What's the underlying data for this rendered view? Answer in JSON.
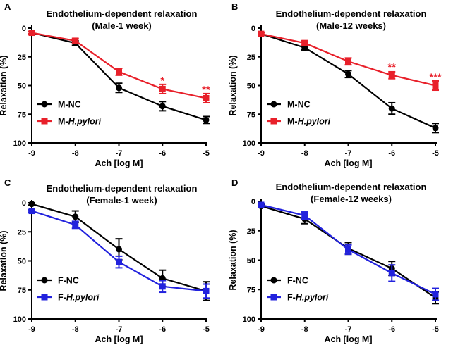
{
  "chart_data": [
    {
      "type": "line",
      "panel": "A",
      "title": [
        "Endothelium-dependent relaxation",
        "(Male-1 week)"
      ],
      "xlabel": "Ach [log M]",
      "ylabel": "Relaxation (%)",
      "x": [
        -9,
        -8,
        -7,
        -6,
        -5
      ],
      "x_tick_labels": [
        "-9",
        "-8",
        "-7",
        "-6",
        "-5"
      ],
      "ylim": [
        100,
        0
      ],
      "y_ticks": [
        0,
        25,
        50,
        75,
        100
      ],
      "y_tick_labels": [
        "0",
        "25",
        "50",
        "75",
        "100"
      ],
      "legend_position": "bottom-left",
      "series": [
        {
          "name": "M-NC",
          "name_parts": [
            "M-NC"
          ],
          "color": "#000000",
          "marker": "circle",
          "values": [
            4,
            13,
            52,
            68,
            80
          ],
          "errors": [
            1,
            2,
            4,
            4,
            3
          ]
        },
        {
          "name": "M-H.pylori",
          "name_parts": [
            "M-",
            "H.pylori"
          ],
          "color": "#e8202a",
          "marker": "square",
          "values": [
            4,
            11,
            38,
            53,
            61
          ],
          "errors": [
            1,
            2,
            3,
            4,
            4
          ]
        }
      ],
      "annotations": [
        {
          "x": -6,
          "y": 45,
          "text": "*"
        },
        {
          "x": -5,
          "y": 53,
          "text": "**"
        }
      ]
    },
    {
      "type": "line",
      "panel": "B",
      "title": [
        "Endothelium-dependent relaxation",
        "(Male-12 weeks)"
      ],
      "xlabel": "Ach [log M]",
      "ylabel": "Relaxation (%)",
      "x": [
        -9,
        -8,
        -7,
        -6,
        -5
      ],
      "x_tick_labels": [
        "-9",
        "-8",
        "-7",
        "-6",
        "-5"
      ],
      "ylim": [
        100,
        0
      ],
      "y_ticks": [
        0,
        25,
        50,
        75,
        100
      ],
      "y_tick_labels": [
        "0",
        "25",
        "50",
        "75",
        "100"
      ],
      "legend_position": "bottom-left",
      "series": [
        {
          "name": "M-NC",
          "name_parts": [
            "M-NC"
          ],
          "color": "#000000",
          "marker": "circle",
          "values": [
            5,
            17,
            40,
            70,
            87
          ],
          "errors": [
            1,
            2,
            3,
            5,
            4
          ]
        },
        {
          "name": "M-H.pylori",
          "name_parts": [
            "M-",
            "H.pylori"
          ],
          "color": "#e8202a",
          "marker": "square",
          "values": [
            5,
            13,
            29,
            41,
            50
          ],
          "errors": [
            1,
            2,
            3,
            3,
            4
          ]
        }
      ],
      "annotations": [
        {
          "x": -6,
          "y": 33,
          "text": "**"
        },
        {
          "x": -5,
          "y": 42,
          "text": "***"
        }
      ]
    },
    {
      "type": "line",
      "panel": "C",
      "title": [
        "Endothelium-dependent relaxation",
        "(Female-1 week)"
      ],
      "xlabel": "Ach [log M]",
      "ylabel": "Relaxation (%)",
      "x": [
        -9,
        -8,
        -7,
        -6,
        -5
      ],
      "x_tick_labels": [
        "-9",
        "-8",
        "-7",
        "-6",
        "-5"
      ],
      "ylim": [
        100,
        0
      ],
      "y_ticks": [
        0,
        25,
        50,
        75,
        100
      ],
      "y_tick_labels": [
        "0",
        "25",
        "50",
        "75",
        "100"
      ],
      "legend_position": "bottom-left",
      "series": [
        {
          "name": "F-NC",
          "name_parts": [
            "F-NC"
          ],
          "color": "#000000",
          "marker": "circle",
          "values": [
            1,
            12,
            40,
            65,
            76
          ],
          "errors": [
            1,
            5,
            9,
            7,
            8
          ]
        },
        {
          "name": "F-H.pylori",
          "name_parts": [
            "F-",
            "H.pylori"
          ],
          "color": "#2222dd",
          "marker": "square",
          "values": [
            7,
            19,
            51,
            72,
            76
          ],
          "errors": [
            1,
            3,
            5,
            5,
            6
          ]
        }
      ],
      "annotations": []
    },
    {
      "type": "line",
      "panel": "D",
      "title": [
        "Endothelium-dependent relaxation",
        "(Female-12 weeks)"
      ],
      "xlabel": "Ach [log M]",
      "ylabel": "Relaxation (%)",
      "x": [
        -9,
        -8,
        -7,
        -6,
        -5
      ],
      "x_tick_labels": [
        "-9",
        "-8",
        "-7",
        "-6",
        "-5"
      ],
      "ylim": [
        100,
        0
      ],
      "y_ticks": [
        0,
        25,
        50,
        75,
        100
      ],
      "y_tick_labels": [
        "0",
        "25",
        "50",
        "75",
        "100"
      ],
      "legend_position": "bottom-left",
      "series": [
        {
          "name": "F-NC",
          "name_parts": [
            "F-NC"
          ],
          "color": "#000000",
          "marker": "circle",
          "values": [
            4,
            15,
            40,
            57,
            82
          ],
          "errors": [
            1,
            4,
            5,
            6,
            5
          ]
        },
        {
          "name": "F-H.pylori",
          "name_parts": [
            "F-",
            "H.pylori"
          ],
          "color": "#2222dd",
          "marker": "square",
          "values": [
            3,
            12,
            41,
            61,
            79
          ],
          "errors": [
            1,
            3,
            4,
            7,
            5
          ]
        }
      ],
      "annotations": []
    }
  ]
}
